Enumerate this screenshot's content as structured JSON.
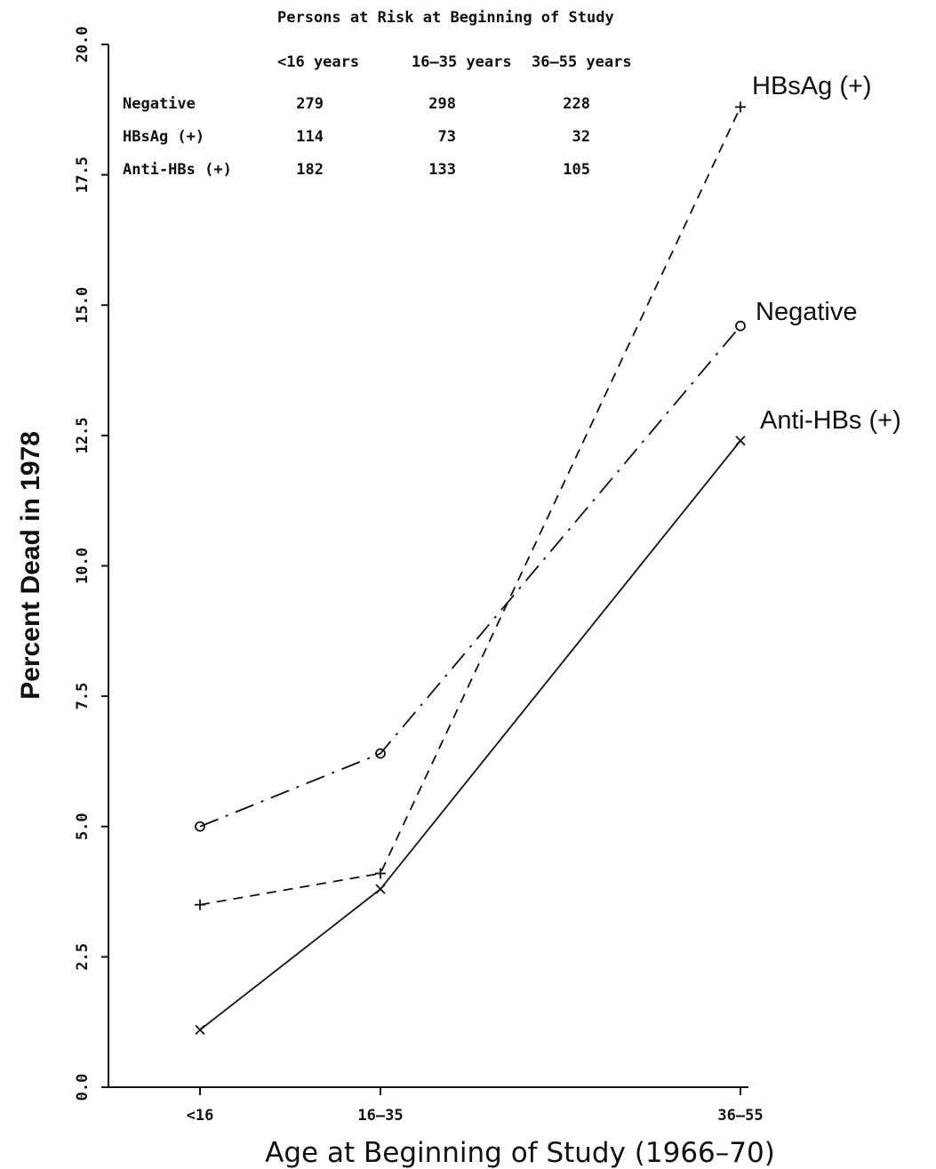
{
  "chart_data": {
    "type": "line",
    "title": "",
    "xlabel": "Age at Beginning of Study (1966–70)",
    "ylabel": "Percent Dead in 1978",
    "categories": [
      "<16",
      "16–35",
      "36–55"
    ],
    "ylim": [
      0,
      20
    ],
    "yticks": [
      "0.0",
      "2.5",
      "5.0",
      "7.5",
      "10.0",
      "12.5",
      "15.0",
      "17.5",
      "20.0"
    ],
    "grid": false,
    "series": [
      {
        "name": "HBsAg (+)",
        "values": [
          3.5,
          4.1,
          18.8
        ],
        "marker": "+",
        "dash": "dashed",
        "color": "#111111"
      },
      {
        "name": "Negative",
        "values": [
          5.0,
          6.4,
          14.6
        ],
        "marker": "o",
        "dash": "dashdot",
        "color": "#111111"
      },
      {
        "name": "Anti-HBs (+)",
        "values": [
          1.1,
          3.8,
          12.4
        ],
        "marker": "x",
        "dash": "solid",
        "color": "#111111"
      }
    ],
    "risk_table": {
      "title": "Persons at Risk at Beginning of Study",
      "columns": [
        "<16 years",
        "16–35 years",
        "36–55 years"
      ],
      "rows": [
        {
          "label": "Negative",
          "values": [
            "279",
            "298",
            "228"
          ]
        },
        {
          "label": "HBsAg (+)",
          "values": [
            "114",
            "73",
            "32"
          ]
        },
        {
          "label": "Anti-HBs (+)",
          "values": [
            "182",
            "133",
            "105"
          ]
        }
      ]
    }
  }
}
